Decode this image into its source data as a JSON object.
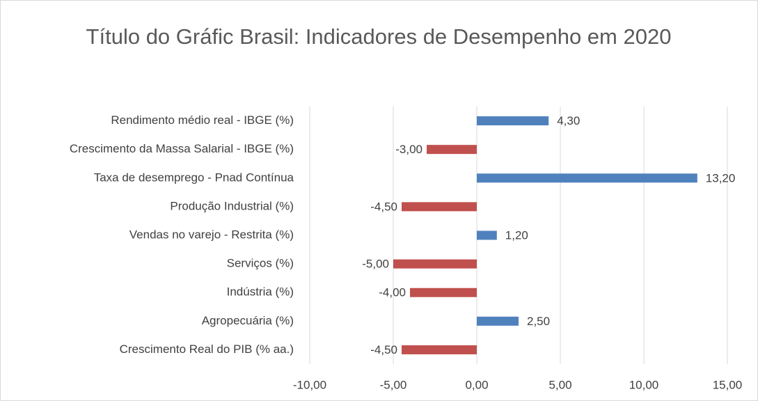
{
  "chart_data": {
    "type": "hbar",
    "title": "Título do Gráfic Brasil: Indicadores de Desempenho em 2020",
    "categories": [
      "Rendimento médio real - IBGE (%)",
      "Crescimento da Massa Salarial - IBGE (%)",
      "Taxa de desemprego - Pnad  Contínua",
      "Produção Industrial (%)",
      "Vendas no varejo - Restrita (%)",
      "Serviços (%)",
      "Indústria (%)",
      "Agropecuária (%)",
      "Crescimento Real do PIB (% aa.)"
    ],
    "values": [
      4.3,
      -3,
      13.2,
      -4.5,
      1.2,
      -5,
      -4,
      2.5,
      -4.5
    ],
    "value_labels": [
      "4,30",
      "-3,00",
      "13,20",
      "-4,50",
      "1,20",
      "-5,00",
      "-4,00",
      "2,50",
      "-4,50"
    ],
    "color": "#4f81bd",
    "negative_color": "#c0504d",
    "xlim": [
      -10,
      15
    ],
    "xticks": [
      {
        "value": -10,
        "label": "-10,00"
      },
      {
        "value": -5,
        "label": "-5,00"
      },
      {
        "value": 0,
        "label": "0,00"
      },
      {
        "value": 5,
        "label": "5,00"
      },
      {
        "value": 10,
        "label": "10,00"
      },
      {
        "value": 15,
        "label": "15,00"
      }
    ],
    "grid": true
  }
}
